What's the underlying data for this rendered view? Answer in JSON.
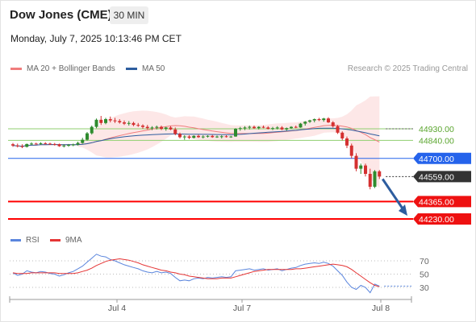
{
  "header": {
    "instrument": "Dow Jones (CME)",
    "timeframe": "30 MIN",
    "datetime": "Monday, July 7, 2025 10:13:46 PM CET"
  },
  "legend": {
    "ma20_label": "MA 20 + Bollinger Bands",
    "ma50_label": "MA 50",
    "credit": "Research © 2025 Trading Central"
  },
  "rsi_legend": {
    "rsi_label": "RSI",
    "ma_label": "9MA"
  },
  "colors": {
    "ma20": "#f07d7d",
    "ma50": "#2d5d9f",
    "bollinger_fill": "#fde3e3",
    "candle_up": "#2e8b2e",
    "candle_down": "#d43030",
    "support": "#ff0000",
    "pivot": "#2563eb",
    "resistance": "#8fcf6f",
    "arrow": "#2d5d9f",
    "rsi": "#5a85dd",
    "rsi_ma": "#e53535"
  },
  "chart_data": {
    "type": "candlestick",
    "xlabels": [
      "Jul 4",
      "Jul 7",
      "Jul 8"
    ],
    "levels": [
      {
        "value": 44930,
        "label": "44930.00",
        "kind": "resistance"
      },
      {
        "value": 44840,
        "label": "44840.00",
        "kind": "resistance"
      },
      {
        "value": 44700,
        "label": "44700.00",
        "kind": "pivot"
      },
      {
        "value": 44559,
        "label": "44559.00",
        "kind": "current"
      },
      {
        "value": 44365,
        "label": "44365.00",
        "kind": "support"
      },
      {
        "value": 44230,
        "label": "44230.00",
        "kind": "support"
      }
    ],
    "ohlc": [
      [
        44810,
        44820,
        44790,
        44800
      ],
      [
        44800,
        44815,
        44785,
        44795
      ],
      [
        44795,
        44810,
        44780,
        44790
      ],
      [
        44790,
        44815,
        44785,
        44812
      ],
      [
        44812,
        44825,
        44805,
        44815
      ],
      [
        44815,
        44822,
        44808,
        44812
      ],
      [
        44812,
        44825,
        44805,
        44818
      ],
      [
        44818,
        44826,
        44810,
        44815
      ],
      [
        44815,
        44822,
        44805,
        44812
      ],
      [
        44812,
        44820,
        44800,
        44810
      ],
      [
        44810,
        44815,
        44790,
        44795
      ],
      [
        44795,
        44810,
        44785,
        44800
      ],
      [
        44800,
        44812,
        44790,
        44805
      ],
      [
        44805,
        44815,
        44795,
        44808
      ],
      [
        44808,
        44830,
        44800,
        44820
      ],
      [
        44820,
        44860,
        44815,
        44845
      ],
      [
        44845,
        44905,
        44838,
        44895
      ],
      [
        44895,
        44955,
        44885,
        44945
      ],
      [
        44945,
        45010,
        44935,
        45000
      ],
      [
        45000,
        45030,
        44960,
        44975
      ],
      [
        44975,
        45015,
        44965,
        45005
      ],
      [
        45005,
        45025,
        44980,
        44995
      ],
      [
        44995,
        45015,
        44975,
        44990
      ],
      [
        44990,
        45005,
        44970,
        44980
      ],
      [
        44980,
        44995,
        44960,
        44970
      ],
      [
        44970,
        44990,
        44955,
        44975
      ],
      [
        44975,
        44985,
        44950,
        44960
      ],
      [
        44960,
        44975,
        44945,
        44955
      ],
      [
        44955,
        44965,
        44930,
        44945
      ],
      [
        44945,
        44960,
        44925,
        44935
      ],
      [
        44935,
        44950,
        44920,
        44940
      ],
      [
        44940,
        44955,
        44925,
        44945
      ],
      [
        44945,
        44955,
        44920,
        44930
      ],
      [
        44930,
        44945,
        44915,
        44940
      ],
      [
        44940,
        44950,
        44920,
        44925
      ],
      [
        44925,
        44940,
        44880,
        44890
      ],
      [
        44890,
        44900,
        44855,
        44865
      ],
      [
        44865,
        44880,
        44845,
        44870
      ],
      [
        44870,
        44880,
        44850,
        44860
      ],
      [
        44860,
        44880,
        44855,
        44875
      ],
      [
        44875,
        44885,
        44860,
        44865
      ],
      [
        44865,
        44880,
        44855,
        44870
      ],
      [
        44870,
        44880,
        44862,
        44875
      ],
      [
        44875,
        44882,
        44860,
        44865
      ],
      [
        44865,
        44878,
        44860,
        44870
      ],
      [
        44870,
        44880,
        44855,
        44872
      ],
      [
        44872,
        44880,
        44862,
        44868
      ],
      [
        44868,
        44876,
        44860,
        44870
      ],
      [
        44870,
        44935,
        44868,
        44930
      ],
      [
        44930,
        44945,
        44915,
        44935
      ],
      [
        44935,
        44950,
        44920,
        44940
      ],
      [
        44940,
        44955,
        44925,
        44945
      ],
      [
        44945,
        44955,
        44930,
        44935
      ],
      [
        44935,
        44950,
        44925,
        44945
      ],
      [
        44945,
        44955,
        44935,
        44940
      ],
      [
        44940,
        44950,
        44925,
        44930
      ],
      [
        44930,
        44945,
        44920,
        44935
      ],
      [
        44935,
        44950,
        44925,
        44940
      ],
      [
        44940,
        44950,
        44920,
        44925
      ],
      [
        44925,
        44940,
        44915,
        44935
      ],
      [
        44935,
        44950,
        44930,
        44945
      ],
      [
        44945,
        44955,
        44935,
        44940
      ],
      [
        44940,
        44975,
        44938,
        44970
      ],
      [
        44970,
        44990,
        44955,
        44985
      ],
      [
        44985,
        45000,
        44975,
        44995
      ],
      [
        44995,
        45010,
        44980,
        45005
      ],
      [
        45005,
        45015,
        44990,
        44998
      ],
      [
        44998,
        45015,
        44985,
        45010
      ],
      [
        45010,
        45020,
        44975,
        44980
      ],
      [
        44980,
        44990,
        44940,
        44950
      ],
      [
        44950,
        44960,
        44890,
        44900
      ],
      [
        44900,
        44910,
        44840,
        44855
      ],
      [
        44855,
        44870,
        44780,
        44800
      ],
      [
        44800,
        44815,
        44700,
        44720
      ],
      [
        44720,
        44740,
        44600,
        44620
      ],
      [
        44620,
        44660,
        44580,
        44645
      ],
      [
        44645,
        44660,
        44560,
        44580
      ],
      [
        44580,
        44620,
        44460,
        44480
      ],
      [
        44480,
        44610,
        44470,
        44600
      ],
      [
        44600,
        44610,
        44540,
        44559
      ]
    ],
    "rsi": {
      "values": [
        52,
        48,
        50,
        55,
        53,
        52,
        54,
        53,
        51,
        50,
        47,
        49,
        52,
        54,
        58,
        62,
        68,
        74,
        80,
        77,
        76,
        72,
        70,
        67,
        64,
        62,
        60,
        58,
        55,
        53,
        52,
        54,
        52,
        53,
        51,
        45,
        40,
        41,
        40,
        43,
        44,
        43,
        45,
        44,
        45,
        46,
        45,
        46,
        55,
        56,
        57,
        58,
        56,
        57,
        58,
        56,
        57,
        58,
        55,
        57,
        59,
        60,
        63,
        65,
        66,
        67,
        66,
        68,
        66,
        62,
        55,
        48,
        38,
        30,
        27,
        33,
        30,
        22,
        35,
        32
      ],
      "ma": [
        52,
        51,
        51,
        51,
        52,
        52,
        52,
        52,
        52,
        52,
        51,
        51,
        51,
        51,
        52,
        54,
        56,
        59,
        63,
        66,
        69,
        71,
        72,
        73,
        72,
        71,
        69,
        67,
        64,
        62,
        60,
        58,
        56,
        55,
        53,
        52,
        50,
        49,
        47,
        46,
        45,
        44,
        43,
        43,
        43,
        44,
        44,
        44,
        46,
        48,
        50,
        52,
        54,
        55,
        56,
        57,
        57,
        57,
        57,
        57,
        57,
        58,
        58,
        59,
        60,
        61,
        62,
        63,
        64,
        65,
        64,
        63,
        61,
        57,
        52,
        47,
        42,
        37,
        33,
        31
      ],
      "ticks": [
        "70",
        "50",
        "30"
      ]
    }
  }
}
